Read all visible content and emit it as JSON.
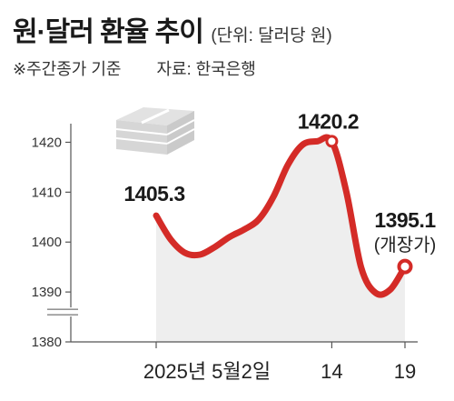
{
  "header": {
    "title": "원·달러 환율 추이",
    "unit": "(단위: 달러당 원)",
    "note": "※주간종가 기준",
    "source": "자료: 한국은행"
  },
  "colors": {
    "line": "#d42b27",
    "fill": "#eeeeee",
    "axis": "#555555",
    "icon": "#dcdcdc"
  },
  "chart_data": {
    "type": "area",
    "ylim": [
      1380,
      1423
    ],
    "ytick_values": [
      1380,
      1390,
      1400,
      1410,
      1420
    ],
    "yticks": [
      "1380",
      "1390",
      "1400",
      "1410",
      "1420"
    ],
    "axis_break": true,
    "x_tick_labels": [
      {
        "label": "2025년 5월2일",
        "day": 2
      },
      {
        "label": "14",
        "day": 14
      },
      {
        "label": "19",
        "day": 19
      }
    ],
    "series": [
      {
        "x": [
          2,
          3,
          4,
          5,
          6,
          7,
          8,
          9,
          10,
          11,
          12,
          13,
          14,
          15,
          16,
          17,
          18,
          19
        ],
        "values": [
          1405.3,
          1400.5,
          1397.8,
          1397.5,
          1399.0,
          1401.0,
          1402.5,
          1404.5,
          1409.0,
          1415.5,
          1419.5,
          1420.2,
          1420.2,
          1410.0,
          1395.0,
          1389.8,
          1390.5,
          1395.1
        ]
      }
    ],
    "annotations": [
      {
        "label": "1405.3",
        "day": 2,
        "value": 1405.3
      },
      {
        "label": "1420.2",
        "day": 14,
        "value": 1420.2
      },
      {
        "label": "1395.1",
        "day": 19,
        "value": 1395.1,
        "note": "(개장가)"
      }
    ]
  }
}
